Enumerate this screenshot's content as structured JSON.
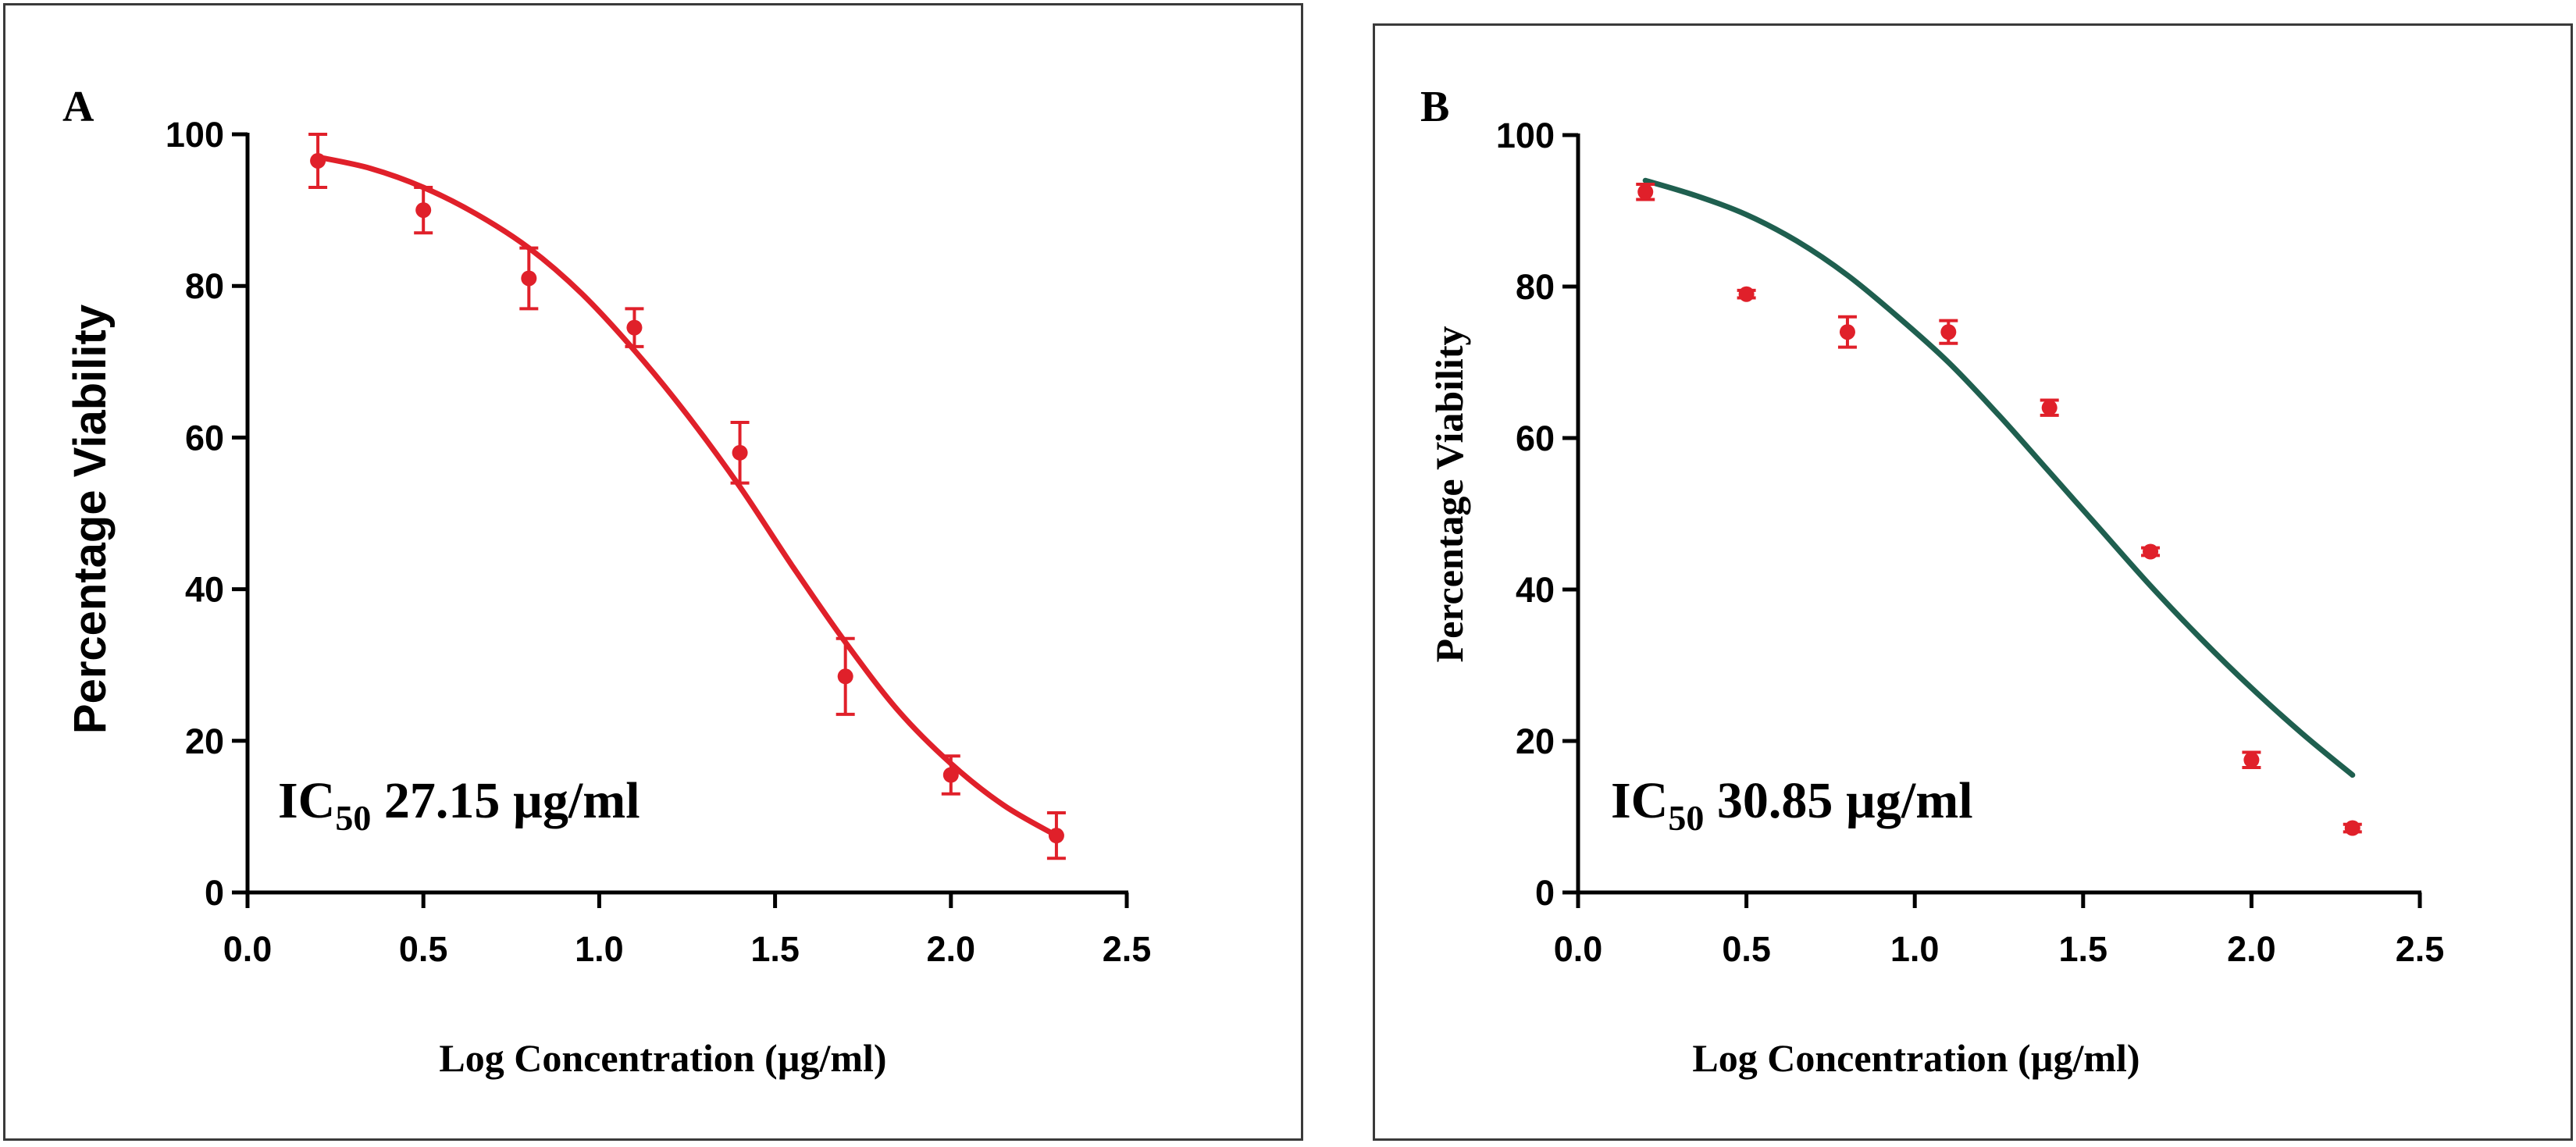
{
  "chart_data": [
    {
      "type": "scatter",
      "panel_label": "A",
      "xlabel": "Log Concentration (µg/ml)",
      "ylabel": "Percentage Viability",
      "xlim": [
        0.0,
        2.5
      ],
      "ylim": [
        0,
        100
      ],
      "x_ticks": [
        "0.0",
        "0.5",
        "1.0",
        "1.5",
        "2.0",
        "2.5"
      ],
      "y_ticks": [
        "0",
        "20",
        "40",
        "60",
        "80",
        "100"
      ],
      "annotation": {
        "prefix": "IC",
        "subscript": "50",
        "value": " 27.15 µg/ml"
      },
      "point_color": "#e0202a",
      "curve_color": "#e0202a",
      "series": [
        {
          "x": [
            0.2,
            0.5,
            0.8,
            1.1,
            1.4,
            1.7,
            2.0,
            2.3
          ],
          "y": [
            96.5,
            90.0,
            81.0,
            74.5,
            58.0,
            28.5,
            15.5,
            7.5
          ],
          "error": [
            3.5,
            3.0,
            4.0,
            2.5,
            4.0,
            5.0,
            2.5,
            3.0
          ]
        }
      ],
      "fit_curve": {
        "x": [
          0.2,
          0.35,
          0.5,
          0.65,
          0.8,
          0.95,
          1.1,
          1.25,
          1.4,
          1.55,
          1.7,
          1.85,
          2.0,
          2.15,
          2.3
        ],
        "y": [
          97.0,
          95.5,
          93.0,
          89.5,
          85.0,
          79.0,
          71.5,
          63.0,
          53.5,
          43.0,
          33.0,
          24.0,
          17.0,
          11.5,
          7.5
        ]
      }
    },
    {
      "type": "scatter",
      "panel_label": "B",
      "xlabel": "Log Concentration (µg/ml)",
      "ylabel": "Percentage Viability",
      "xlim": [
        0.0,
        2.5
      ],
      "ylim": [
        0,
        100
      ],
      "x_ticks": [
        "0.0",
        "0.5",
        "1.0",
        "1.5",
        "2.0",
        "2.5"
      ],
      "y_ticks": [
        "0",
        "20",
        "40",
        "60",
        "80",
        "100"
      ],
      "annotation": {
        "prefix": "IC",
        "subscript": "50",
        "value": " 30.85 µg/ml"
      },
      "point_color": "#e0202a",
      "curve_color": "#1f5f4f",
      "series": [
        {
          "x": [
            0.2,
            0.5,
            0.8,
            1.1,
            1.4,
            1.7,
            2.0,
            2.3
          ],
          "y": [
            92.5,
            79.0,
            74.0,
            74.0,
            64.0,
            45.0,
            17.5,
            8.5
          ],
          "error": [
            1.0,
            0.5,
            2.0,
            1.5,
            1.0,
            0.5,
            1.0,
            0.5
          ]
        }
      ],
      "fit_curve": {
        "x": [
          0.2,
          0.35,
          0.5,
          0.65,
          0.8,
          0.95,
          1.1,
          1.25,
          1.4,
          1.55,
          1.7,
          1.85,
          2.0,
          2.15,
          2.3
        ],
        "y": [
          94.0,
          92.0,
          89.5,
          86.0,
          81.5,
          76.0,
          70.0,
          63.0,
          55.5,
          48.0,
          40.5,
          33.5,
          27.0,
          21.0,
          15.5
        ]
      }
    }
  ]
}
